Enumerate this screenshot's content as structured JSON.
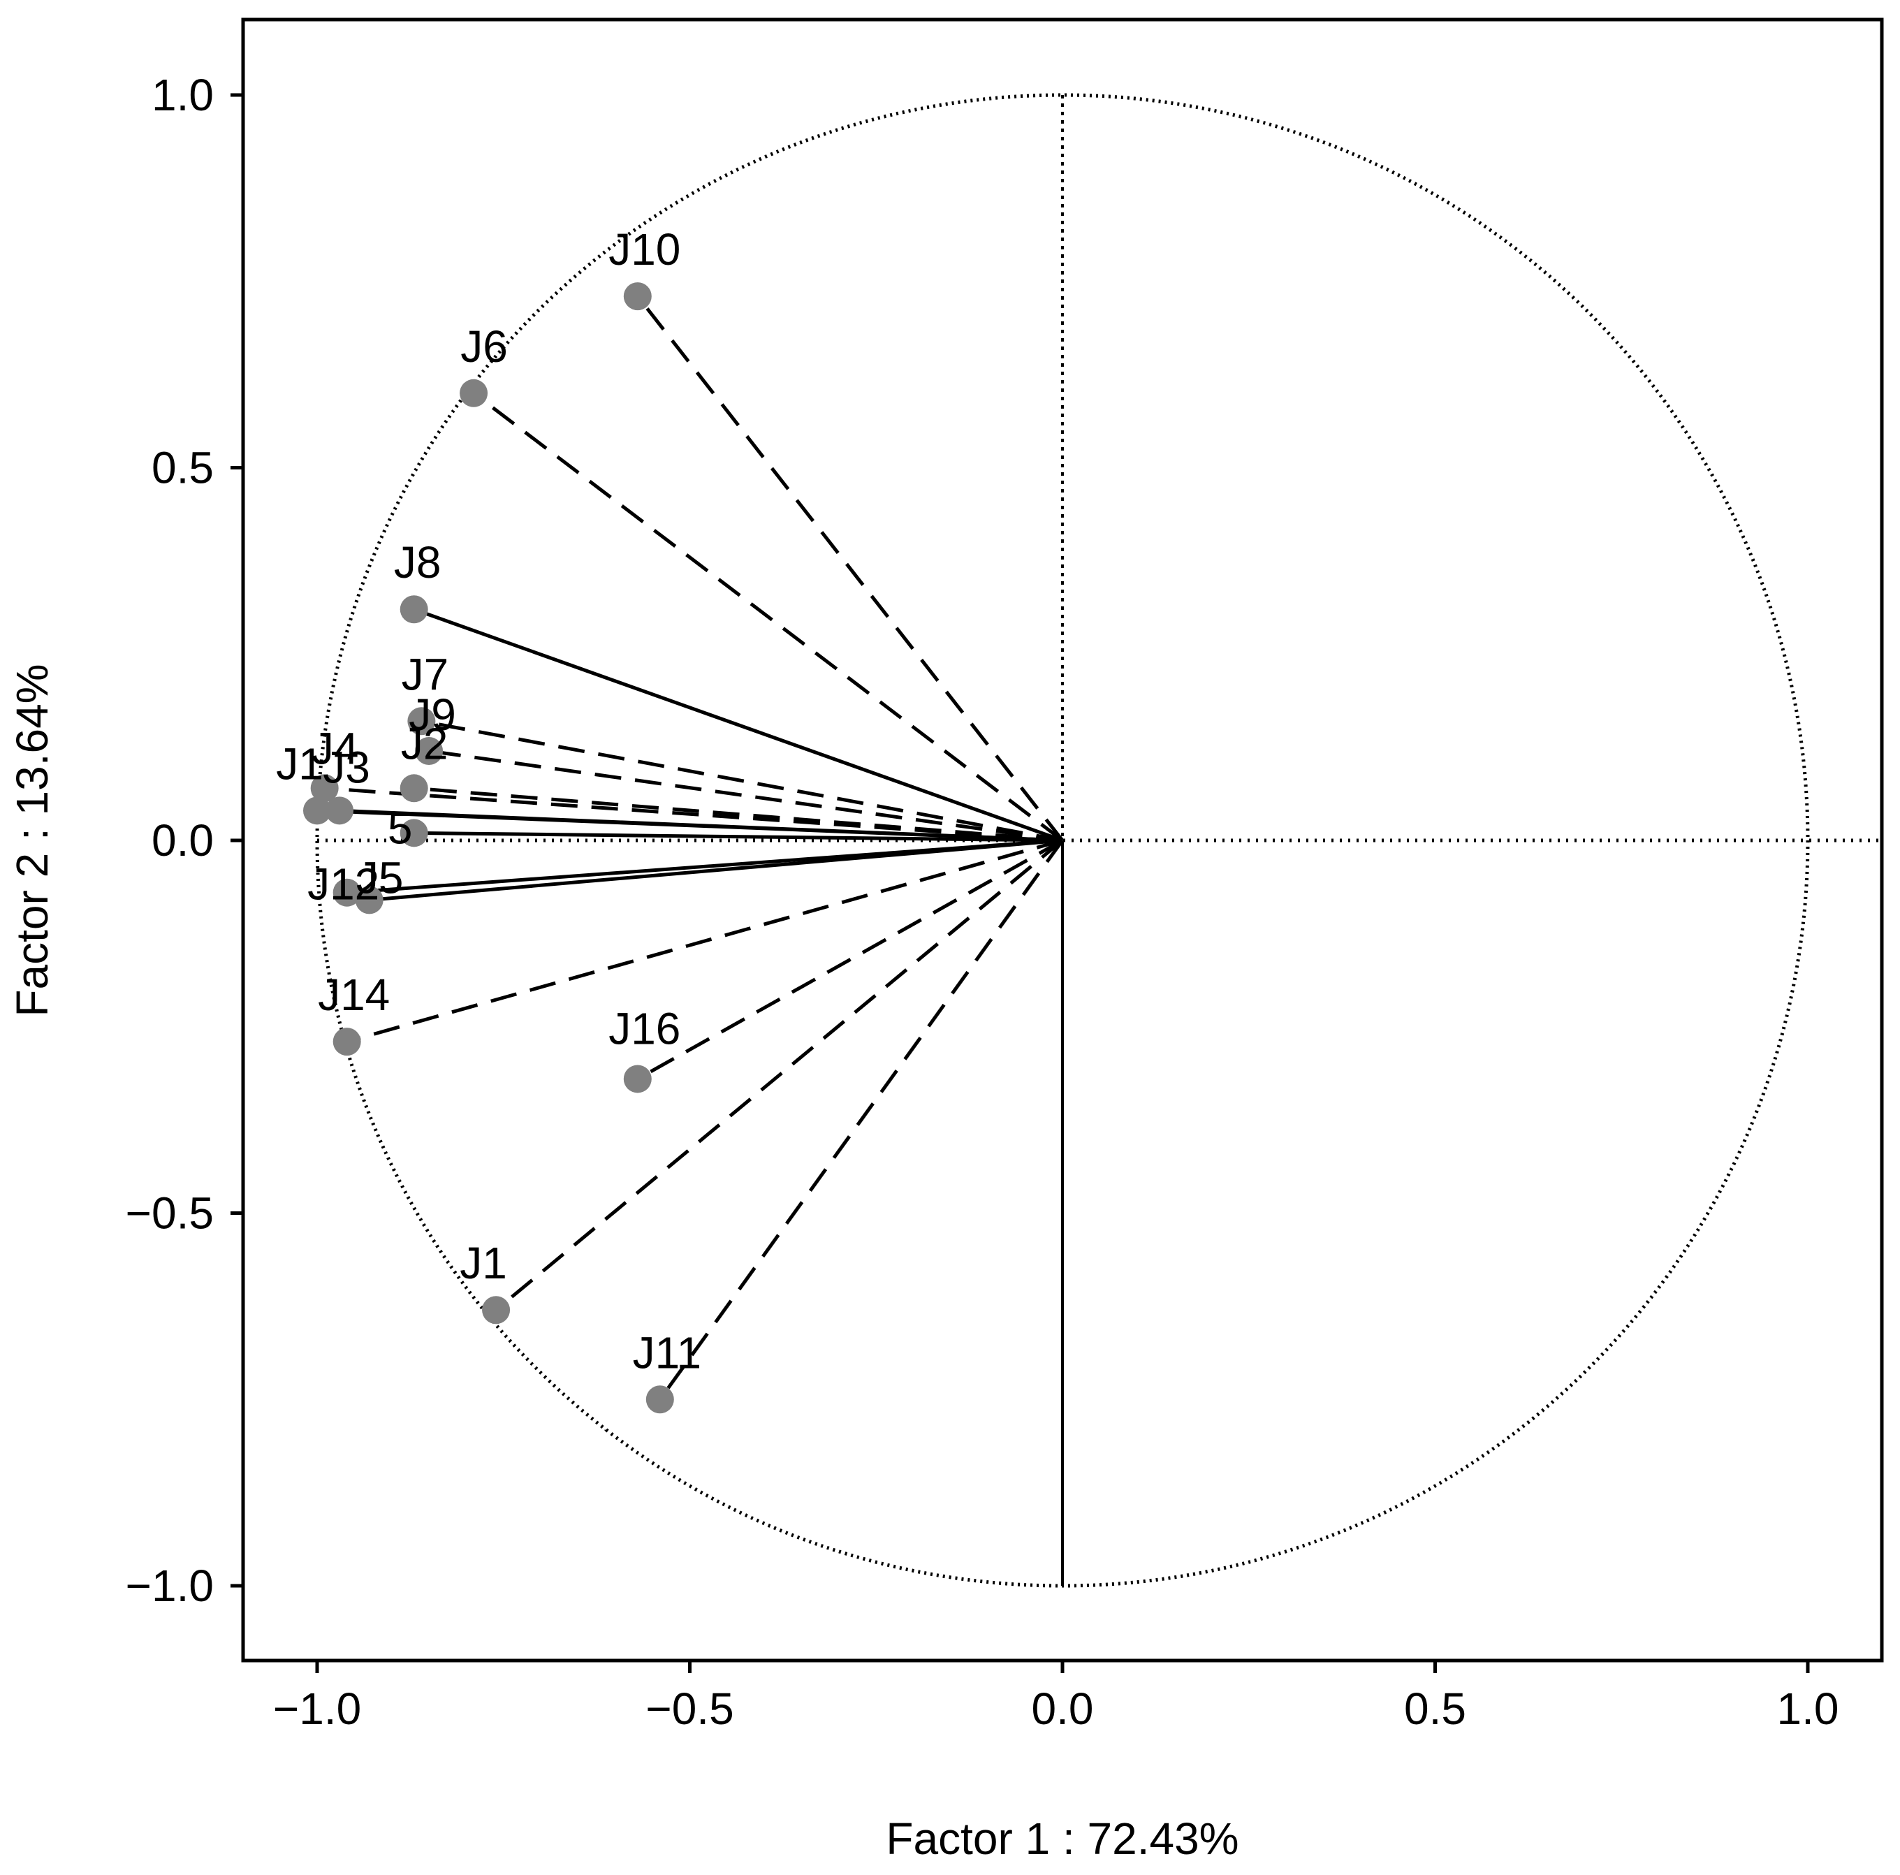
{
  "chart_data": {
    "type": "scatter",
    "title": "",
    "xlabel": "Factor 1 : 72.43%",
    "ylabel": "Factor 2 : 13.64%",
    "xlim": [
      -1.1,
      1.1
    ],
    "ylim": [
      -1.1,
      1.1
    ],
    "xticks": [
      "−1.0",
      "−0.5",
      "0.0",
      "0.5",
      "1.0"
    ],
    "yticks": [
      "−1.0",
      "−0.5",
      "0.0",
      "0.5",
      "1.0"
    ],
    "xtick_values": [
      -1.0,
      -0.5,
      0.0,
      0.5,
      1.0
    ],
    "ytick_values": [
      -1.0,
      -0.5,
      0.0,
      0.5,
      1.0
    ],
    "grid": false,
    "unit_circle": true,
    "points": [
      {
        "label": "J1",
        "x": -0.76,
        "y": -0.63,
        "line": "dashed"
      },
      {
        "label": "J2",
        "x": -0.87,
        "y": 0.07,
        "line": "dashed"
      },
      {
        "label": "J3",
        "x": -0.97,
        "y": 0.04,
        "line": "solid"
      },
      {
        "label": "J4",
        "x": -0.99,
        "y": 0.07,
        "line": "dashed"
      },
      {
        "label": "J5",
        "x": -0.93,
        "y": -0.08,
        "line": "solid"
      },
      {
        "label": "J6",
        "x": -0.79,
        "y": 0.6,
        "line": "dashed"
      },
      {
        "label": "J7",
        "x": -0.86,
        "y": 0.16,
        "line": "dashed"
      },
      {
        "label": "J8",
        "x": -0.87,
        "y": 0.31,
        "line": "solid"
      },
      {
        "label": "J9",
        "x": -0.85,
        "y": 0.12,
        "line": "dashed"
      },
      {
        "label": "J10",
        "x": -0.57,
        "y": 0.73,
        "line": "dashed"
      },
      {
        "label": "J11",
        "x": -0.54,
        "y": -0.75,
        "line": "dashed"
      },
      {
        "label": "J12",
        "x": -0.96,
        "y": -0.07,
        "line": "solid"
      },
      {
        "label": "J13",
        "x": -1.0,
        "y": 0.04,
        "line": "solid"
      },
      {
        "label": "J14",
        "x": -0.96,
        "y": -0.27,
        "line": "dashed"
      },
      {
        "label": "J15",
        "x": -0.87,
        "y": 0.01,
        "line": "solid"
      },
      {
        "label": "J16",
        "x": -0.57,
        "y": -0.32,
        "line": "dashed"
      }
    ],
    "label_text": {
      "J1": "J1",
      "J2": "J2",
      "J3": "J3",
      "J4": "J4",
      "J5": "J5",
      "J6": "J6",
      "J7": "J7",
      "J8": "J8",
      "J9": "J9",
      "J10": "J10",
      "J11": "J11",
      "J12": "J12",
      "J13": "J1",
      "J14": "J14",
      "J15": "5",
      "J16": "J16"
    },
    "colors": {
      "point": "#808080",
      "line": "#000000",
      "frame": "#000000"
    }
  }
}
